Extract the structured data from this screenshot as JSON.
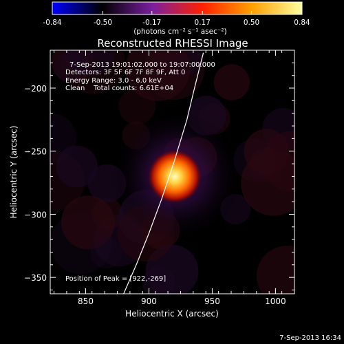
{
  "colorbar": {
    "tick_labels": [
      "-0.84",
      "-0.50",
      "-0.17",
      "0.17",
      "0.50",
      "0.84"
    ],
    "tick_values": [
      -0.84,
      -0.5,
      -0.17,
      0.17,
      0.5,
      0.84
    ],
    "range": [
      -0.84,
      0.84
    ],
    "unit_label": "(photons cm⁻² s⁻¹ asec⁻²)",
    "colors": [
      "#0000ff",
      "#000000",
      "#7a1fa0",
      "#ff2000",
      "#ffa000",
      "#ffffa0"
    ]
  },
  "chart_data": {
    "type": "heatmap",
    "title": "Reconstructed RHESSI Image",
    "xlabel": "Heliocentric X (arcsec)",
    "ylabel": "Heliocentric Y (arcsec)",
    "xlim": [
      822,
      1015
    ],
    "ylim": [
      -363,
      -170
    ],
    "xticks": [
      850,
      900,
      950,
      1000
    ],
    "yticks": [
      -200,
      -250,
      -300,
      -350
    ],
    "xtick_labels": [
      "850",
      "900",
      "950",
      "1000"
    ],
    "ytick_labels": [
      "−200",
      "−250",
      "−300",
      "−350"
    ],
    "peak": {
      "x": 922,
      "y": -269
    },
    "limb_points": [
      [
        880,
        -363
      ],
      [
        890,
        -340
      ],
      [
        900,
        -315
      ],
      [
        910,
        -288
      ],
      [
        920,
        -258
      ],
      [
        930,
        -225
      ],
      [
        936,
        -200
      ],
      [
        941,
        -180
      ],
      [
        943,
        -172
      ]
    ],
    "annotations": [
      "7-Sep-2013 19:01:02.000 to 19:07:00.000",
      "Detectors: 3F 5F 6F 7F 8F 9F, Att 0",
      "Energy Range: 3.0 - 6.0 keV",
      "Clean    Total counts: 6.61E+04"
    ],
    "peak_label": "Position of Peak = [922,-269]"
  },
  "footer": {
    "timestamp": "7-Sep-2013 16:34"
  }
}
